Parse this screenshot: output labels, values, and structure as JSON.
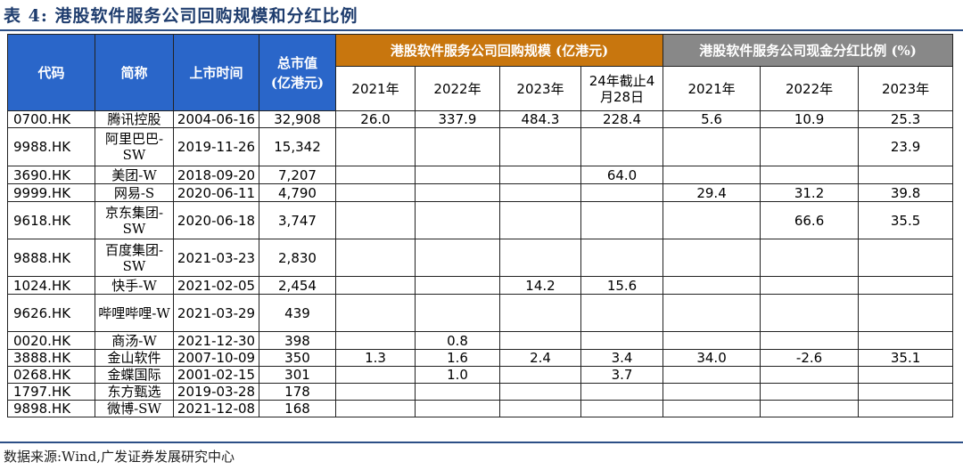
{
  "title": "表 4:  港股软件服务公司回购规模和分红比例",
  "header": {
    "code": "代码",
    "short_name": "简称",
    "list_date": "上市时间",
    "market_cap": "总市值\n(亿港元)",
    "buyback_group": "港股软件服务公司回购规模 (亿港元)",
    "dividend_group": "港股软件服务公司现金分红比例 (%)",
    "buyback_years": [
      "2021年",
      "2022年",
      "2023年",
      "24年截止4\n月28日"
    ],
    "dividend_years": [
      "2021年",
      "2022年",
      "2023年"
    ]
  },
  "rows": [
    {
      "code": "0700.HK",
      "name": "腾讯控股",
      "date": "2004-06-16",
      "cap": "32,908",
      "b2021": "26.0",
      "b2022": "337.9",
      "b2023": "484.3",
      "b2024": "228.4",
      "d2021": "5.6",
      "d2022": "10.9",
      "d2023": "25.3"
    },
    {
      "code": "9988.HK",
      "name": "阿里巴巴-SW",
      "date": "2019-11-26",
      "cap": "15,342",
      "b2021": "",
      "b2022": "",
      "b2023": "",
      "b2024": "",
      "d2021": "",
      "d2022": "",
      "d2023": "23.9"
    },
    {
      "code": "3690.HK",
      "name": "美团-W",
      "date": "2018-09-20",
      "cap": "7,207",
      "b2021": "",
      "b2022": "",
      "b2023": "",
      "b2024": "64.0",
      "d2021": "",
      "d2022": "",
      "d2023": ""
    },
    {
      "code": "9999.HK",
      "name": "网易-S",
      "date": "2020-06-11",
      "cap": "4,790",
      "b2021": "",
      "b2022": "",
      "b2023": "",
      "b2024": "",
      "d2021": "29.4",
      "d2022": "31.2",
      "d2023": "39.8"
    },
    {
      "code": "9618.HK",
      "name": "京东集团-SW",
      "date": "2020-06-18",
      "cap": "3,747",
      "b2021": "",
      "b2022": "",
      "b2023": "",
      "b2024": "",
      "d2021": "",
      "d2022": "66.6",
      "d2023": "35.5"
    },
    {
      "code": "9888.HK",
      "name": "百度集团-SW",
      "date": "2021-03-23",
      "cap": "2,830",
      "b2021": "",
      "b2022": "",
      "b2023": "",
      "b2024": "",
      "d2021": "",
      "d2022": "",
      "d2023": ""
    },
    {
      "code": "1024.HK",
      "name": "快手-W",
      "date": "2021-02-05",
      "cap": "2,454",
      "b2021": "",
      "b2022": "",
      "b2023": "14.2",
      "b2024": "15.6",
      "d2021": "",
      "d2022": "",
      "d2023": ""
    },
    {
      "code": "9626.HK",
      "name": "哔哩哔哩-W",
      "date": "2021-03-29",
      "cap": "439",
      "b2021": "",
      "b2022": "",
      "b2023": "",
      "b2024": "",
      "d2021": "",
      "d2022": "",
      "d2023": ""
    },
    {
      "code": "0020.HK",
      "name": "商汤-W",
      "date": "2021-12-30",
      "cap": "398",
      "b2021": "",
      "b2022": "0.8",
      "b2023": "",
      "b2024": "",
      "d2021": "",
      "d2022": "",
      "d2023": ""
    },
    {
      "code": "3888.HK",
      "name": "金山软件",
      "date": "2007-10-09",
      "cap": "350",
      "b2021": "1.3",
      "b2022": "1.6",
      "b2023": "2.4",
      "b2024": "3.4",
      "d2021": "34.0",
      "d2022": "-2.6",
      "d2023": "35.1"
    },
    {
      "code": "0268.HK",
      "name": "金蝶国际",
      "date": "2001-02-15",
      "cap": "301",
      "b2021": "",
      "b2022": "1.0",
      "b2023": "",
      "b2024": "3.7",
      "d2021": "",
      "d2022": "",
      "d2023": ""
    },
    {
      "code": "1797.HK",
      "name": "东方甄选",
      "date": "2019-03-28",
      "cap": "178",
      "b2021": "",
      "b2022": "",
      "b2023": "",
      "b2024": "",
      "d2021": "",
      "d2022": "",
      "d2023": ""
    },
    {
      "code": "9898.HK",
      "name": "微博-SW",
      "date": "2021-12-08",
      "cap": "168",
      "b2021": "",
      "b2022": "",
      "b2023": "",
      "b2024": "",
      "d2021": "",
      "d2022": "",
      "d2023": ""
    }
  ],
  "source": "数据来源:Wind,广发证券发展研究中心"
}
